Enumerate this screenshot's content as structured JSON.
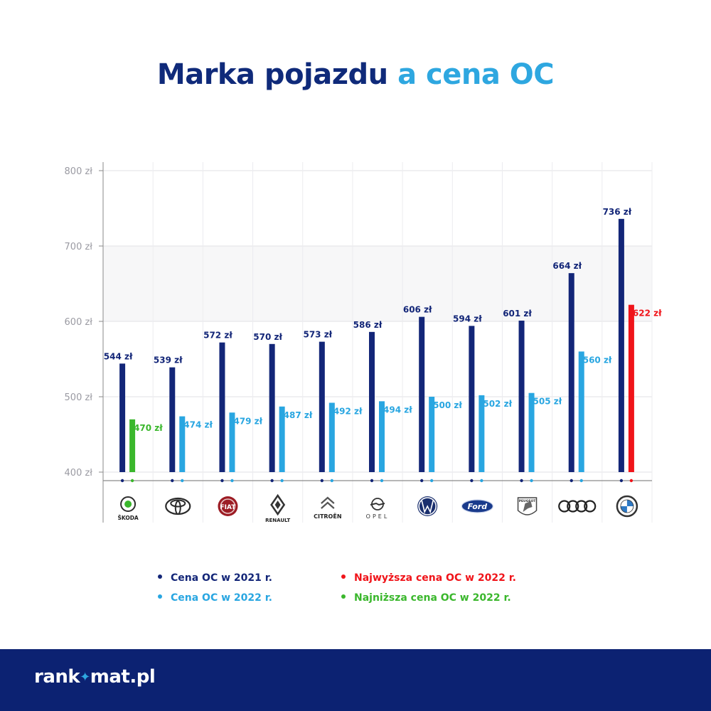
{
  "title": {
    "part1": "Marka pojazdu",
    "part2": "a cena OC"
  },
  "colors": {
    "y2021": "#132678",
    "y2022": "#29a6e1",
    "highest2022": "#f0141a",
    "lowest2022": "#3ab72c",
    "footer": "#0c2272"
  },
  "chart_data": {
    "type": "bar",
    "categories": [
      "ŠKODA",
      "Toyota",
      "Fiat",
      "RENAULT",
      "CITROËN",
      "OPEL",
      "Volkswagen",
      "Ford",
      "PEUGEOT",
      "Audi",
      "BMW"
    ],
    "unit": "zł",
    "ylim": [
      400,
      800
    ],
    "yticks": [
      400,
      500,
      600,
      700,
      800
    ],
    "ytick_labels": [
      "400 zł",
      "500 zł",
      "600 zł",
      "700 zł",
      "800 zł"
    ],
    "grid": true,
    "series": [
      {
        "name": "Cena OC w 2021 r.",
        "values": [
          544,
          539,
          572,
          570,
          573,
          586,
          606,
          594,
          601,
          664,
          736
        ]
      },
      {
        "name": "Cena OC w 2022 r.",
        "values": [
          470,
          474,
          479,
          487,
          492,
          494,
          500,
          502,
          505,
          560,
          622
        ]
      }
    ],
    "highlight": {
      "lowest_2022_index": 0,
      "highest_2022_index": 10
    },
    "legend_position": "bottom"
  },
  "legend": {
    "items": [
      {
        "label": "Cena OC w 2021 r.",
        "color": "#132678"
      },
      {
        "label": "Cena OC w 2022 r.",
        "color": "#29a6e1"
      },
      {
        "label": "Najwyższa cena OC w 2022 r.",
        "color": "#f0141a"
      },
      {
        "label": "Najniższa cena OC w 2022 r.",
        "color": "#3ab72c"
      }
    ]
  },
  "footer": {
    "brand_left": "rank",
    "brand_icon": "star-icon",
    "brand_right": "mat.pl"
  }
}
